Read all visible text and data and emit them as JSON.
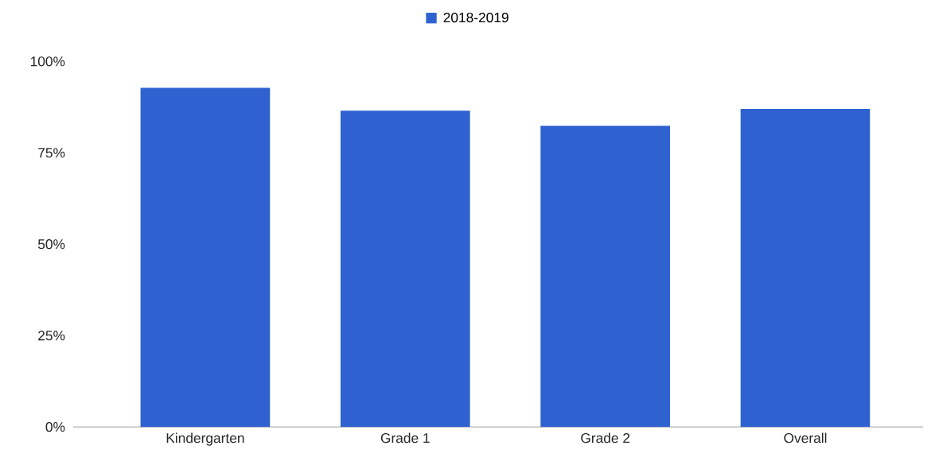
{
  "chart_data": {
    "type": "bar",
    "categories": [
      "Kindergarten",
      "Grade 1",
      "Grade 2",
      "Overall"
    ],
    "series": [
      {
        "name": "2018-2019",
        "color": "#2f62d0",
        "values": [
          92.8,
          86.5,
          82.4,
          87.0
        ]
      }
    ],
    "ylim": [
      0,
      100
    ],
    "yticks": [
      {
        "value": 0,
        "label": "0%"
      },
      {
        "value": 25,
        "label": "25%"
      },
      {
        "value": 50,
        "label": "50%"
      },
      {
        "value": 75,
        "label": "75%"
      },
      {
        "value": 100,
        "label": "100%"
      }
    ],
    "legend": "top"
  }
}
